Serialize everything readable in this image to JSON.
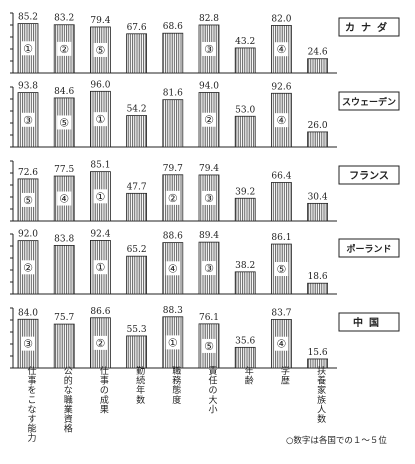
{
  "chart_data": {
    "type": "bar",
    "categories": [
      "仕事をこなす能力",
      "公的な職業資格",
      "仕事の成果",
      "勤続年数",
      "職務態度",
      "責任の大小",
      "年齢",
      "学歴",
      "扶養家族人数"
    ],
    "panels": [
      {
        "name": "カナダ",
        "values": [
          85.2,
          83.2,
          79.4,
          67.6,
          68.6,
          82.8,
          43.2,
          82.0,
          24.6
        ],
        "ranks": [
          "①",
          "②",
          "⑤",
          "",
          "",
          "③",
          "",
          "④",
          ""
        ]
      },
      {
        "name": "スウェーデン",
        "values": [
          93.8,
          84.6,
          96.0,
          54.2,
          81.6,
          94.0,
          53.0,
          92.6,
          26.0
        ],
        "ranks": [
          "③",
          "⑤",
          "①",
          "",
          "",
          "②",
          "",
          "④",
          ""
        ]
      },
      {
        "name": "フランス",
        "values": [
          72.6,
          77.5,
          85.1,
          47.7,
          79.7,
          79.4,
          39.2,
          66.4,
          30.4
        ],
        "ranks": [
          "⑤",
          "④",
          "①",
          "",
          "②",
          "③",
          "",
          "",
          ""
        ]
      },
      {
        "name": "ポーランド",
        "values": [
          92.0,
          83.8,
          92.4,
          65.2,
          88.6,
          89.4,
          38.2,
          86.1,
          18.6
        ],
        "ranks": [
          "②",
          "",
          "①",
          "",
          "④",
          "③",
          "",
          "⑤",
          ""
        ]
      },
      {
        "name": "中国",
        "values": [
          84.0,
          75.7,
          86.6,
          55.3,
          88.3,
          76.1,
          35.6,
          83.7,
          15.6
        ],
        "ranks": [
          "③",
          "",
          "②",
          "",
          "①",
          "⑤",
          "",
          "④",
          ""
        ]
      }
    ],
    "note": "○数字は各国での１～５位"
  }
}
